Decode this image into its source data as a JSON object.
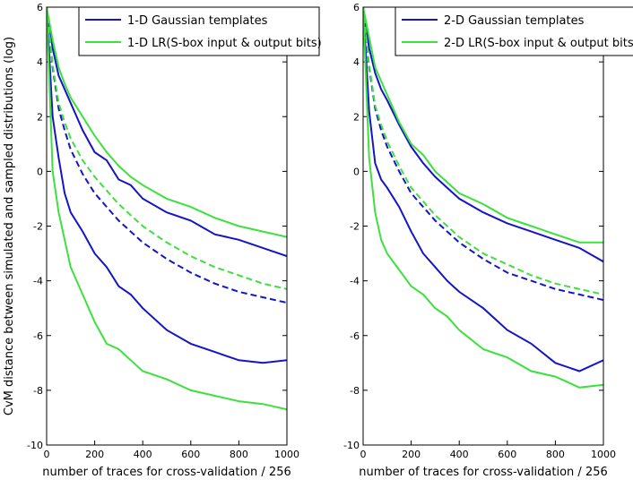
{
  "chart_data": [
    {
      "type": "line",
      "ylabel": "CvM distance between simulated and sampled distributions (log)",
      "xlabel": "number of traces for cross-validation / 256",
      "xlim": [
        0,
        1000
      ],
      "xticks": [
        0,
        200,
        400,
        600,
        800,
        1000
      ],
      "ylim": [
        -10,
        6
      ],
      "yticks": [
        -10,
        -8,
        -6,
        -4,
        -2,
        0,
        2,
        4,
        6
      ],
      "legend": "upper right",
      "x": [
        0,
        25,
        50,
        75,
        100,
        150,
        200,
        250,
        300,
        350,
        400,
        500,
        600,
        700,
        800,
        900,
        1000
      ],
      "series": [
        {
          "name": "1-D Gaussian templates",
          "color": "#1414c8",
          "lines": [
            {
              "values": [
                6,
                4.5,
                3.5,
                3,
                2.5,
                1.5,
                0.7,
                0.4,
                -0.3,
                -0.5,
                -1,
                -1.5,
                -1.8,
                -2.3,
                -2.5,
                -2.8,
                -3.1
              ]
            },
            {
              "values": [
                6,
                3.8,
                2.3,
                1.5,
                0.8,
                -0.1,
                -0.8,
                -1.3,
                -1.8,
                -2.2,
                -2.6,
                -3.2,
                -3.7,
                -4.1,
                -4.4,
                -4.6,
                -4.8
              ],
              "dashed": true
            },
            {
              "values": [
                6,
                2,
                0.5,
                -0.8,
                -1.5,
                -2.2,
                -3,
                -3.5,
                -4.2,
                -4.5,
                -5,
                -5.8,
                -6.3,
                -6.6,
                -6.9,
                -7,
                -6.9
              ]
            }
          ]
        },
        {
          "name": "1-D LR(S-box input & output bits)",
          "color": "#3ee03e",
          "lines": [
            {
              "values": [
                6,
                4.8,
                3.8,
                3.2,
                2.7,
                2,
                1.3,
                0.7,
                0.2,
                -0.2,
                -0.5,
                -1,
                -1.3,
                -1.7,
                -2,
                -2.2,
                -2.4
              ]
            },
            {
              "values": [
                6,
                3.9,
                2.5,
                1.8,
                1.2,
                0.4,
                -0.2,
                -0.7,
                -1.2,
                -1.6,
                -2,
                -2.6,
                -3.1,
                -3.5,
                -3.8,
                -4.1,
                -4.3
              ],
              "dashed": true
            },
            {
              "values": [
                6,
                0,
                -1.5,
                -2.5,
                -3.5,
                -4.5,
                -5.5,
                -6.3,
                -6.5,
                -6.9,
                -7.3,
                -7.6,
                -8,
                -8.2,
                -8.4,
                -8.5,
                -8.7
              ]
            }
          ]
        }
      ]
    },
    {
      "type": "line",
      "xlabel": "number of traces for cross-validation / 256",
      "xlim": [
        0,
        1000
      ],
      "xticks": [
        0,
        200,
        400,
        600,
        800,
        1000
      ],
      "ylim": [
        -10,
        6
      ],
      "yticks": [
        -10,
        -8,
        -6,
        -4,
        -2,
        0,
        2,
        4,
        6
      ],
      "legend": "upper right",
      "x": [
        0,
        25,
        50,
        75,
        100,
        150,
        200,
        250,
        300,
        350,
        400,
        500,
        600,
        700,
        800,
        900,
        1000
      ],
      "series": [
        {
          "name": "2-D Gaussian templates",
          "color": "#1414c8",
          "lines": [
            {
              "values": [
                6,
                4.5,
                3.6,
                3,
                2.6,
                1.7,
                0.9,
                0.3,
                -0.2,
                -0.6,
                -1,
                -1.5,
                -1.9,
                -2.2,
                -2.5,
                -2.8,
                -3.3
              ]
            },
            {
              "values": [
                6,
                3.8,
                2.3,
                1.5,
                0.9,
                0,
                -0.8,
                -1.3,
                -1.8,
                -2.2,
                -2.6,
                -3.2,
                -3.7,
                -4,
                -4.3,
                -4.5,
                -4.7
              ],
              "dashed": true
            },
            {
              "values": [
                6,
                2.2,
                0.3,
                -0.3,
                -0.6,
                -1.3,
                -2.2,
                -3,
                -3.5,
                -4,
                -4.4,
                -5,
                -5.8,
                -6.3,
                -7,
                -7.3,
                -6.9
              ]
            }
          ]
        },
        {
          "name": "2-D LR(S-box input & output bits)",
          "color": "#3ee03e",
          "lines": [
            {
              "values": [
                6,
                4.9,
                3.8,
                3.3,
                2.8,
                1.8,
                1,
                0.6,
                0,
                -0.4,
                -0.8,
                -1.2,
                -1.7,
                -2,
                -2.3,
                -2.6,
                -2.6
              ]
            },
            {
              "values": [
                6,
                3.9,
                2.4,
                1.7,
                1.1,
                0.2,
                -0.6,
                -1.1,
                -1.6,
                -2,
                -2.4,
                -3,
                -3.4,
                -3.8,
                -4.1,
                -4.3,
                -4.5
              ],
              "dashed": true
            },
            {
              "values": [
                6,
                0.5,
                -1.5,
                -2.5,
                -3,
                -3.6,
                -4.2,
                -4.5,
                -5,
                -5.3,
                -5.8,
                -6.5,
                -6.8,
                -7.3,
                -7.5,
                -7.9,
                -7.8
              ]
            }
          ]
        }
      ]
    }
  ]
}
